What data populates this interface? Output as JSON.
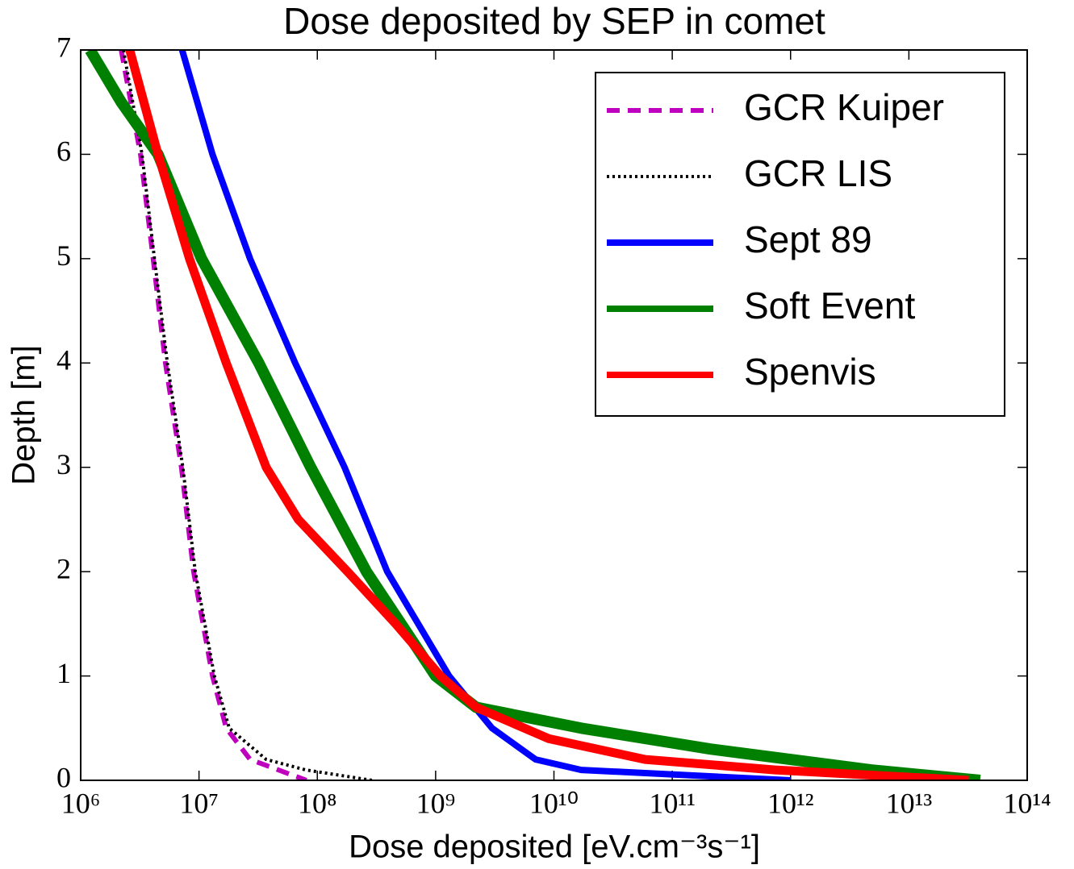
{
  "chart_data": {
    "type": "line",
    "title": "Dose deposited by SEP in comet",
    "x_label": "Dose deposited [eV.cm⁻³s⁻¹]",
    "y_label": "Depth [m]",
    "xscale": "log",
    "xlim": [
      1000000,
      100000000000000
    ],
    "xticks": [
      {
        "value": 1000000,
        "label": "10⁶"
      },
      {
        "value": 10000000,
        "label": "10⁷"
      },
      {
        "value": 100000000,
        "label": "10⁸"
      },
      {
        "value": 1000000000,
        "label": "10⁹"
      },
      {
        "value": 10000000000,
        "label": "10¹⁰"
      },
      {
        "value": 100000000000,
        "label": "10¹¹"
      },
      {
        "value": 1000000000000,
        "label": "10¹²"
      },
      {
        "value": 10000000000000,
        "label": "10¹³"
      },
      {
        "value": 100000000000000,
        "label": "10¹⁴"
      }
    ],
    "ylim": [
      0,
      7
    ],
    "yticks": [
      0,
      1,
      2,
      3,
      4,
      5,
      6,
      7
    ],
    "legend": "upper right",
    "series": [
      {
        "name": "GCR Kuiper",
        "color": "#bf00bf",
        "linestyle": "dashed",
        "x": [
          2200000,
          3200000,
          4100000,
          5200000,
          7100000,
          9000000,
          13000000,
          17000000,
          27000000,
          81000000
        ],
        "y": [
          7,
          6,
          5,
          4,
          3,
          2,
          1,
          0.5,
          0.2,
          0
        ]
      },
      {
        "name": "GCR LIS",
        "color": "#000000",
        "linestyle": "dotted",
        "x": [
          2300000,
          3300000,
          4200000,
          5400000,
          7300000,
          9300000,
          13500000,
          18000000,
          37000000,
          80000000,
          290000000
        ],
        "y": [
          7,
          6,
          5,
          4,
          3,
          2,
          1,
          0.5,
          0.2,
          0.1,
          0
        ]
      },
      {
        "name": "Sept 89",
        "color": "#0000ff",
        "linestyle": "solid",
        "x": [
          7200000,
          13000000,
          27000000,
          65000000,
          170000000,
          390000000,
          1300000000,
          3000000000,
          7000000000,
          17000000000,
          1000000000000
        ],
        "y": [
          7,
          6,
          5,
          4,
          3,
          2,
          1,
          0.5,
          0.2,
          0.1,
          0
        ]
      },
      {
        "name": "Soft Event",
        "color": "#008000",
        "linestyle": "solid",
        "x": [
          1200000,
          2200000,
          4500000,
          10500000,
          32000000,
          88000000,
          260000000,
          1000000000,
          2200000000,
          17000000000,
          210000000000,
          4800000000000,
          40000000000000
        ],
        "y": [
          7,
          6.5,
          6,
          5,
          4,
          3,
          2,
          1,
          0.7,
          0.5,
          0.3,
          0.1,
          0
        ]
      },
      {
        "name": "Spenvis",
        "color": "#ff0000",
        "linestyle": "solid",
        "x": [
          2600000,
          4500000,
          8300000,
          17000000,
          37000000,
          69000000,
          180000000,
          460000000,
          1100000000,
          2200000000,
          9000000000,
          59000000000,
          740000000000,
          32000000000000
        ],
        "y": [
          7,
          6,
          5,
          4,
          3,
          2.5,
          2,
          1.5,
          1,
          0.7,
          0.4,
          0.2,
          0.1,
          0
        ]
      }
    ]
  }
}
